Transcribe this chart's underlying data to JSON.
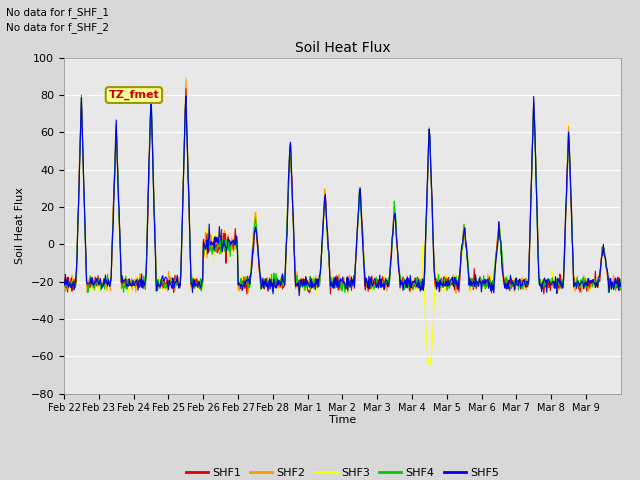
{
  "title": "Soil Heat Flux",
  "ylabel": "Soil Heat Flux",
  "xlabel": "Time",
  "annotations": [
    "No data for f_SHF_1",
    "No data for f_SHF_2"
  ],
  "legend_label": "TZ_fmet",
  "series_names": [
    "SHF1",
    "SHF2",
    "SHF3",
    "SHF4",
    "SHF5"
  ],
  "series_colors": [
    "#dd0000",
    "#ff9900",
    "#ffff00",
    "#00cc00",
    "#0000ee"
  ],
  "ylim": [
    -80,
    100
  ],
  "yticks": [
    -80,
    -60,
    -40,
    -20,
    0,
    20,
    40,
    60,
    80,
    100
  ],
  "xtick_labels": [
    "Feb 22",
    "Feb 23",
    "Feb 24",
    "Feb 25",
    "Feb 26",
    "Feb 27",
    "Feb 28",
    "Mar 1",
    "Mar 2",
    "Mar 3",
    "Mar 4",
    "Mar 5",
    "Mar 6",
    "Mar 7",
    "Mar 8",
    "Mar 9"
  ],
  "figsize": [
    6.4,
    4.8
  ],
  "dpi": 100
}
